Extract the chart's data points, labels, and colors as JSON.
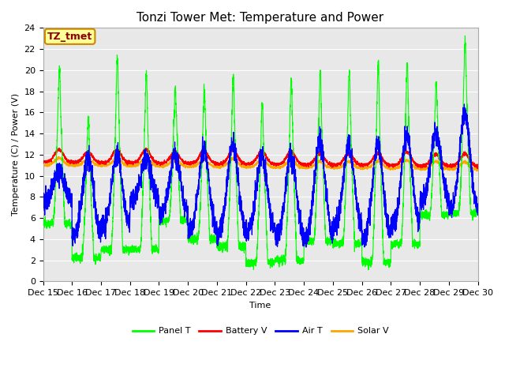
{
  "title": "Tonzi Tower Met: Temperature and Power",
  "ylabel": "Temperature (C) / Power (V)",
  "xlabel": "Time",
  "annotation": "TZ_tmet",
  "ylim": [
    0,
    24
  ],
  "yticks": [
    0,
    2,
    4,
    6,
    8,
    10,
    12,
    14,
    16,
    18,
    20,
    22,
    24
  ],
  "xticklabels": [
    "Dec 15",
    "Dec 16",
    "Dec 17",
    "Dec 18",
    "Dec 19",
    "Dec 20",
    "Dec 21",
    "Dec 22",
    "Dec 23",
    "Dec 24",
    "Dec 25",
    "Dec 26",
    "Dec 27",
    "Dec 28",
    "Dec 29",
    "Dec 30"
  ],
  "series_colors": {
    "panel_t": "#00FF00",
    "battery_v": "#FF0000",
    "air_t": "#0000FF",
    "solar_v": "#FFA500"
  },
  "series_labels": {
    "panel_t": "Panel T",
    "battery_v": "Battery V",
    "air_t": "Air T",
    "solar_v": "Solar V"
  },
  "bg_color": "#E8E8E8",
  "plot_bg_color": "#E8E8E8",
  "title_fontsize": 11,
  "axis_fontsize": 8,
  "tick_fontsize": 8,
  "annotation_fontsize": 9,
  "annotation_color": "#8B0000",
  "annotation_bg": "#FFFF99",
  "annotation_border": "#CC8800"
}
